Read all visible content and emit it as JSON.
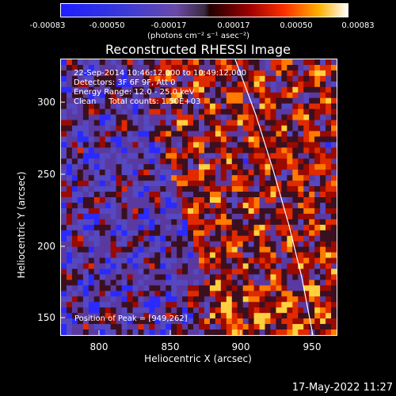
{
  "colorbar": {
    "ticks": [
      "-0.00083",
      "-0.00050",
      "-0.00017",
      "0.00017",
      "0.00050",
      "0.00083"
    ],
    "units": "(photons cm⁻² s⁻¹ asec⁻²)"
  },
  "title": "Reconstructed RHESSI Image",
  "info": {
    "time": "22-Sep-2014 10:46:12.000 to 10:49:12.000",
    "detectors": "Detectors: 3F 6F 9F, Att 0",
    "energy": "Energy Range: 12.0 - 25.0 keV",
    "counts": "Clean     Total counts: 1.50E+03"
  },
  "peak": "Position of Peak = [949,262]",
  "axes": {
    "xlabel": "Heliocentric X (arcsec)",
    "ylabel": "Heliocentric Y (arcsec)",
    "xticks": [
      "800",
      "850",
      "900",
      "950"
    ],
    "yticks": [
      "300",
      "250",
      "200",
      "150"
    ]
  },
  "timestamp": "17-May-2022 11:27",
  "colors": {
    "background": "#000000",
    "limb_line": "#ffffff"
  }
}
